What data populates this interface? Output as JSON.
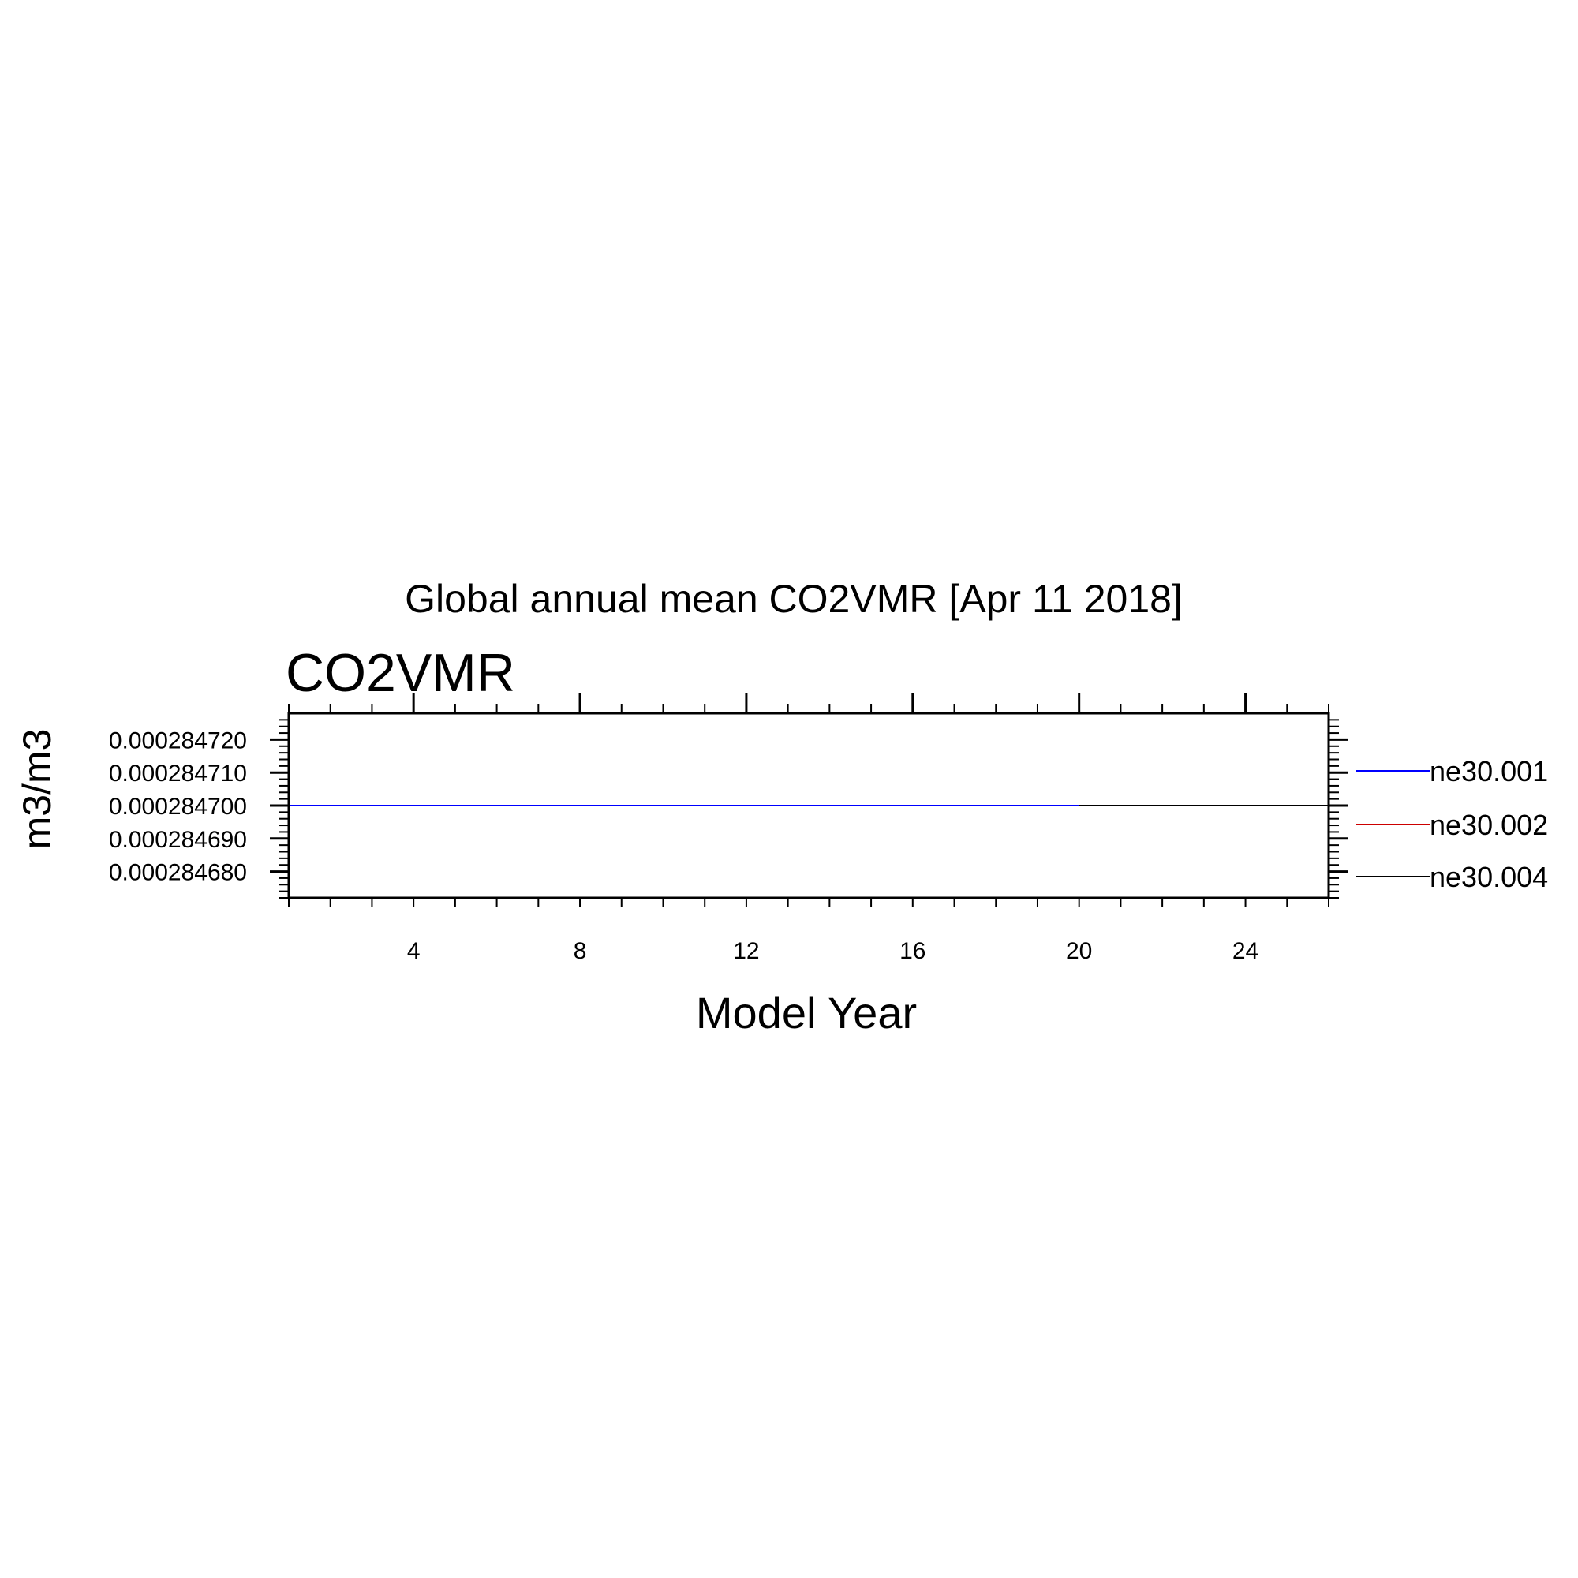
{
  "chart_data": {
    "type": "line",
    "title": "Global annual mean CO2VMR [Apr 11 2018]",
    "subtitle": "CO2VMR",
    "xlabel": "Model Year",
    "ylabel": "m3/m3",
    "xlim": [
      1,
      26
    ],
    "ylim": [
      0.000284672,
      0.000284728
    ],
    "x_ticks": [
      4,
      8,
      12,
      16,
      20,
      24
    ],
    "x_tick_labels": [
      "4",
      "8",
      "12",
      "16",
      "20",
      "24"
    ],
    "y_ticks": [
      0.00028472,
      0.00028471,
      0.0002847,
      0.00028469,
      0.00028468
    ],
    "y_tick_labels": [
      "0.000284720",
      "0.000284710",
      "0.000284700",
      "0.000284690",
      "0.000284680"
    ],
    "grid": false,
    "legend_position": "right",
    "series": [
      {
        "name": "ne30.001",
        "color": "#0000ff",
        "x": [
          1,
          2,
          3,
          4,
          5,
          6,
          7,
          8,
          9,
          10,
          11,
          12,
          13,
          14,
          15,
          16,
          17,
          18,
          19,
          20
        ],
        "values": [
          0.0002847,
          0.0002847,
          0.0002847,
          0.0002847,
          0.0002847,
          0.0002847,
          0.0002847,
          0.0002847,
          0.0002847,
          0.0002847,
          0.0002847,
          0.0002847,
          0.0002847,
          0.0002847,
          0.0002847,
          0.0002847,
          0.0002847,
          0.0002847,
          0.0002847,
          0.0002847
        ]
      },
      {
        "name": "ne30.002",
        "color": "#cc0000",
        "x": [],
        "values": []
      },
      {
        "name": "ne30.004",
        "color": "#000000",
        "x": [
          1,
          2,
          3,
          4,
          5,
          6,
          7,
          8,
          9,
          10,
          11,
          12,
          13,
          14,
          15,
          16,
          17,
          18,
          19,
          20,
          21,
          22,
          23,
          24,
          25,
          26
        ],
        "values": [
          0.0002847,
          0.0002847,
          0.0002847,
          0.0002847,
          0.0002847,
          0.0002847,
          0.0002847,
          0.0002847,
          0.0002847,
          0.0002847,
          0.0002847,
          0.0002847,
          0.0002847,
          0.0002847,
          0.0002847,
          0.0002847,
          0.0002847,
          0.0002847,
          0.0002847,
          0.0002847,
          0.0002847,
          0.0002847,
          0.0002847,
          0.0002847,
          0.0002847,
          0.0002847
        ]
      }
    ]
  }
}
